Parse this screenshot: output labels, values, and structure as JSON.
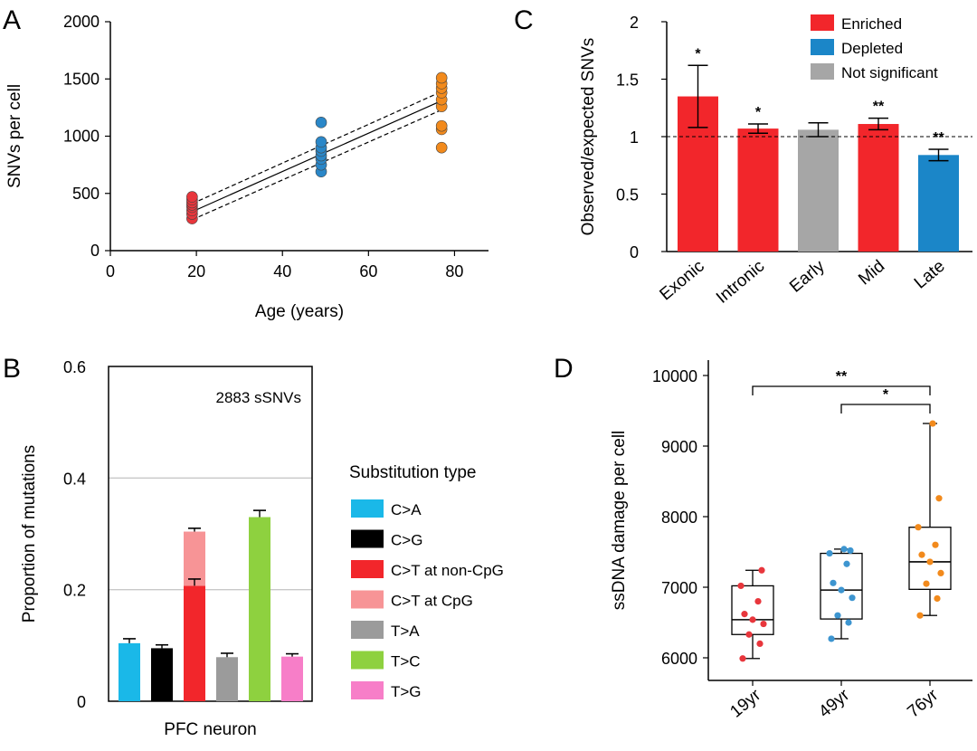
{
  "figure": {
    "panels": [
      "A",
      "B",
      "C",
      "D"
    ]
  },
  "chart_data": [
    {
      "panel": "A",
      "type": "scatter",
      "xlabel": "Age (years)",
      "ylabel": "SNVs per cell",
      "xlim": [
        0,
        90
      ],
      "ylim": [
        0,
        2000
      ],
      "xticks": [
        "0",
        "20",
        "40",
        "60",
        "80"
      ],
      "yticks": [
        "0",
        "500",
        "1000",
        "1500",
        "2000"
      ],
      "series": [
        {
          "name": "19yr",
          "color": "#e8363c",
          "x": 19,
          "y": [
            280,
            320,
            350,
            380,
            400,
            420,
            445,
            470
          ]
        },
        {
          "name": "49yr",
          "color": "#2a87c8",
          "x": 49,
          "y": [
            690,
            750,
            800,
            830,
            870,
            900,
            950,
            1120
          ]
        },
        {
          "name": "76yr",
          "color": "#f28a1c",
          "x": 77,
          "y": [
            900,
            1060,
            1090,
            1260,
            1320,
            1380,
            1420,
            1460,
            1510
          ]
        }
      ],
      "fit_line": {
        "x": [
          19,
          77
        ],
        "y": [
          340,
          1310
        ]
      },
      "ci_upper": {
        "x": [
          19,
          77
        ],
        "y": [
          410,
          1390
        ]
      },
      "ci_lower": {
        "x": [
          19,
          77
        ],
        "y": [
          270,
          1230
        ]
      }
    },
    {
      "panel": "B",
      "type": "bar",
      "xlabel": "PFC neuron",
      "ylabel": "Proportion of mutations",
      "ylim": [
        0,
        0.6
      ],
      "yticks": [
        "0",
        "0.2",
        "0.4",
        "0.6"
      ],
      "grid": true,
      "annotation": "2883 sSNVs",
      "legend_title": "Substitution type",
      "categories": [
        "C>A",
        "C>G",
        "C>T at non-CpG",
        "C>T at CpG",
        "T>A",
        "T>C",
        "T>G"
      ],
      "colors": [
        "#1ab8e8",
        "#000000",
        "#f2262b",
        "#f79496",
        "#9b9b9b",
        "#8ed13f",
        "#f77ec8"
      ],
      "bars": [
        {
          "label": "C>A",
          "value": 0.104,
          "err": 0.008,
          "color": "#1ab8e8"
        },
        {
          "label": "C>G",
          "value": 0.095,
          "err": 0.006,
          "color": "#000000"
        },
        {
          "label": "C>T at non-CpG",
          "value": 0.207,
          "err": 0.012,
          "color": "#f2262b",
          "stack_top_label": "C>T at CpG",
          "stack_top_value": 0.097,
          "stack_top_err": 0.006,
          "stack_top_color": "#f79496"
        },
        {
          "label": "T>A",
          "value": 0.079,
          "err": 0.007,
          "color": "#9b9b9b"
        },
        {
          "label": "T>C",
          "value": 0.33,
          "err": 0.012,
          "color": "#8ed13f"
        },
        {
          "label": "T>G",
          "value": 0.08,
          "err": 0.005,
          "color": "#f77ec8"
        }
      ]
    },
    {
      "panel": "C",
      "type": "bar",
      "ylabel": "Observed/expected SNVs",
      "ylim": [
        0,
        2
      ],
      "yticks": [
        "0",
        "0.5",
        "1",
        "1.5",
        "2"
      ],
      "reference_line": 1,
      "categories": [
        "Exonic",
        "Intronic",
        "Early",
        "Mid",
        "Late"
      ],
      "values": [
        1.35,
        1.07,
        1.06,
        1.11,
        0.84
      ],
      "errors": [
        0.27,
        0.04,
        0.06,
        0.05,
        0.05
      ],
      "significance": [
        "*",
        "*",
        "",
        "**",
        "**"
      ],
      "status": [
        "Enriched",
        "Enriched",
        "Not significant",
        "Enriched",
        "Depleted"
      ],
      "legend": [
        {
          "label": "Enriched",
          "color": "#f2262b"
        },
        {
          "label": "Depleted",
          "color": "#1b86c8"
        },
        {
          "label": "Not significant",
          "color": "#a6a6a6"
        }
      ]
    },
    {
      "panel": "D",
      "type": "box",
      "ylabel": "ssDNA damage per cell",
      "ylim": [
        5800,
        10000
      ],
      "yticks": [
        "6000",
        "7000",
        "8000",
        "9000",
        "10000"
      ],
      "categories": [
        "19yr",
        "49yr",
        "76yr"
      ],
      "boxes": [
        {
          "label": "19yr",
          "color": "#e8363c",
          "min": 5990,
          "q1": 6330,
          "median": 6540,
          "q3": 7020,
          "max": 7240,
          "points": [
            5990,
            6200,
            6330,
            6480,
            6540,
            6620,
            6800,
            7020,
            7240
          ]
        },
        {
          "label": "49yr",
          "color": "#3d95d0",
          "min": 6270,
          "q1": 6550,
          "median": 6960,
          "q3": 7480,
          "max": 7540,
          "points": [
            6270,
            6500,
            6600,
            6850,
            6960,
            7060,
            7330,
            7480,
            7520,
            7540
          ]
        },
        {
          "label": "76yr",
          "color": "#f28a1c",
          "min": 6600,
          "q1": 6970,
          "median": 7360,
          "q3": 7850,
          "max": 9320,
          "points": [
            6600,
            6840,
            7050,
            7200,
            7360,
            7460,
            7600,
            7850,
            8260,
            9320
          ]
        }
      ],
      "significance": [
        {
          "from": "19yr",
          "to": "76yr",
          "label": "**"
        },
        {
          "from": "49yr",
          "to": "76yr",
          "label": "*"
        }
      ]
    }
  ]
}
